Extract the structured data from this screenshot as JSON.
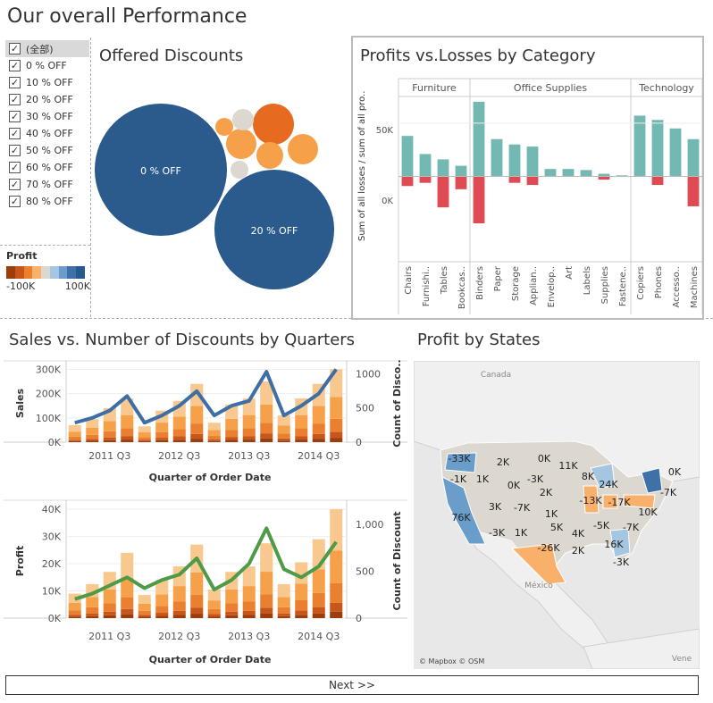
{
  "page_title": "Our overall Performance",
  "filter": {
    "items": [
      "(全部)",
      "0 % OFF",
      "10 % OFF",
      "20 % OFF",
      "30 % OFF",
      "40 % OFF",
      "50 % OFF",
      "60 % OFF",
      "70 % OFF",
      "80 % OFF"
    ]
  },
  "legend": {
    "title": "Profit",
    "min_label": "-100K",
    "max_label": "100K",
    "colors": [
      "#9c3d0c",
      "#c8561a",
      "#ea7f2f",
      "#f9b06b",
      "#dcd7cf",
      "#a5c6e0",
      "#6b9dcb",
      "#3d71a8",
      "#265a8e"
    ]
  },
  "discounts": {
    "title": "Offered Discounts",
    "bubble_labels": [
      "0 % OFF",
      "20 % OFF"
    ],
    "colors": {
      "blue": "#2a5b8c",
      "orange_dark": "#e66b21",
      "orange": "#f6a14a",
      "gray": "#dcd7cf"
    }
  },
  "profits_losses": {
    "title": "Profits vs.Losses by Category",
    "y_label": "Sum of all losses / sum of all pro..",
    "y_ticks": [
      "50K",
      "0K"
    ],
    "groups": [
      "Furniture",
      "Office Supplies",
      "Technology"
    ],
    "colors": {
      "profit": "#73b8b1",
      "loss": "#df4b54"
    },
    "chart_data": {
      "type": "bar",
      "categories": [
        "Chairs",
        "Furnishi..",
        "Tables",
        "Bookcas..",
        "Binders",
        "Paper",
        "Storage",
        "Applian..",
        "Envelop..",
        "Art",
        "Labels",
        "Supplies",
        "Fastene..",
        "Copiers",
        "Phones",
        "Accesso..",
        "Machines"
      ],
      "group_of": [
        0,
        0,
        0,
        0,
        1,
        1,
        1,
        1,
        1,
        1,
        1,
        1,
        1,
        2,
        2,
        2,
        2
      ],
      "series": [
        {
          "values": [
            38000,
            21000,
            16000,
            10000,
            70000,
            35000,
            30000,
            28000,
            7000,
            7000,
            6000,
            2500,
            1000,
            57000,
            53000,
            45000,
            35000
          ]
        },
        {
          "values": [
            -9000,
            -6000,
            -29000,
            -12000,
            -44000,
            0,
            -6000,
            -8000,
            0,
            0,
            0,
            -3000,
            0,
            0,
            -8000,
            0,
            -28000
          ]
        }
      ],
      "ylim": [
        -80000,
        75000
      ]
    }
  },
  "sales": {
    "title": "Sales vs. Number of Discounts by Quarters",
    "y_label": "Sales",
    "y2_label": "Count of Disco..",
    "x_label": "Quarter of Order Date",
    "y_ticks": [
      "300K",
      "200K",
      "100K",
      "0K"
    ],
    "y2_ticks": [
      "1000",
      "500",
      "0"
    ],
    "x_ticks": [
      "2011 Q3",
      "2012 Q3",
      "2013 Q3",
      "2014 Q3"
    ],
    "chart_data": {
      "type": "bar",
      "x": [
        "2011 Q1",
        "2011 Q2",
        "2011 Q3",
        "2011 Q4",
        "2012 Q1",
        "2012 Q2",
        "2012 Q3",
        "2012 Q4",
        "2013 Q1",
        "2013 Q2",
        "2013 Q3",
        "2013 Q4",
        "2014 Q1",
        "2014 Q2",
        "2014 Q3",
        "2014 Q4"
      ],
      "values": [
        70000,
        95000,
        140000,
        180000,
        65000,
        130000,
        170000,
        240000,
        80000,
        155000,
        180000,
        250000,
        110000,
        180000,
        240000,
        300000
      ],
      "line_values": [
        80000,
        100000,
        130000,
        190000,
        80000,
        110000,
        150000,
        210000,
        110000,
        150000,
        170000,
        290000,
        110000,
        150000,
        200000,
        300000
      ],
      "ylim": [
        0,
        320000
      ]
    }
  },
  "profit_q": {
    "title": "",
    "y_label": "Profit",
    "y2_label": "Count of Discount",
    "x_label": "Quarter of Order Date",
    "y_ticks": [
      "40K",
      "30K",
      "20K",
      "10K",
      "0K"
    ],
    "y2_ticks": [
      "1,000",
      "500",
      "0"
    ],
    "x_ticks": [
      "2011 Q3",
      "2012 Q3",
      "2013 Q3",
      "2014 Q3"
    ],
    "chart_data": {
      "type": "bar",
      "x": [
        "2011 Q1",
        "2011 Q2",
        "2011 Q3",
        "2011 Q4",
        "2012 Q1",
        "2012 Q2",
        "2012 Q3",
        "2012 Q4",
        "2013 Q1",
        "2013 Q2",
        "2013 Q3",
        "2013 Q4",
        "2014 Q1",
        "2014 Q2",
        "2014 Q3",
        "2014 Q4"
      ],
      "values": [
        9000,
        12500,
        17000,
        24000,
        8500,
        14000,
        19000,
        27000,
        10500,
        17000,
        19000,
        27500,
        12500,
        20500,
        29000,
        40000
      ],
      "line_values": [
        7000,
        9000,
        12000,
        15000,
        11000,
        14000,
        16000,
        22000,
        10500,
        14000,
        20000,
        33000,
        18000,
        15000,
        19000,
        28000
      ],
      "ylim": [
        0,
        42000
      ]
    }
  },
  "map": {
    "title": "Profit by States",
    "labels": [
      {
        "t": "Canada"
      },
      {
        "t": "-33K"
      },
      {
        "t": "2K"
      },
      {
        "t": "0K"
      },
      {
        "t": "11K"
      },
      {
        "t": "-1K"
      },
      {
        "t": "1K"
      },
      {
        "t": "0K"
      },
      {
        "t": "-3K"
      },
      {
        "t": "8K"
      },
      {
        "t": "24K"
      },
      {
        "t": "0K"
      },
      {
        "t": "2K"
      },
      {
        "t": "-13K"
      },
      {
        "t": "-17K"
      },
      {
        "t": "-7K"
      },
      {
        "t": "3K"
      },
      {
        "t": "-7K"
      },
      {
        "t": "1K"
      },
      {
        "t": "10K"
      },
      {
        "t": "76K"
      },
      {
        "t": "5K"
      },
      {
        "t": "-5K"
      },
      {
        "t": "-7K"
      },
      {
        "t": "-3K"
      },
      {
        "t": "1K"
      },
      {
        "t": "4K"
      },
      {
        "t": "-26K"
      },
      {
        "t": "16K"
      },
      {
        "t": "2K"
      },
      {
        "t": "-3K"
      },
      {
        "t": "México"
      },
      {
        "t": "Vene"
      }
    ],
    "attribution": "© Mapbox © OSM"
  },
  "next_button": "Next >>"
}
